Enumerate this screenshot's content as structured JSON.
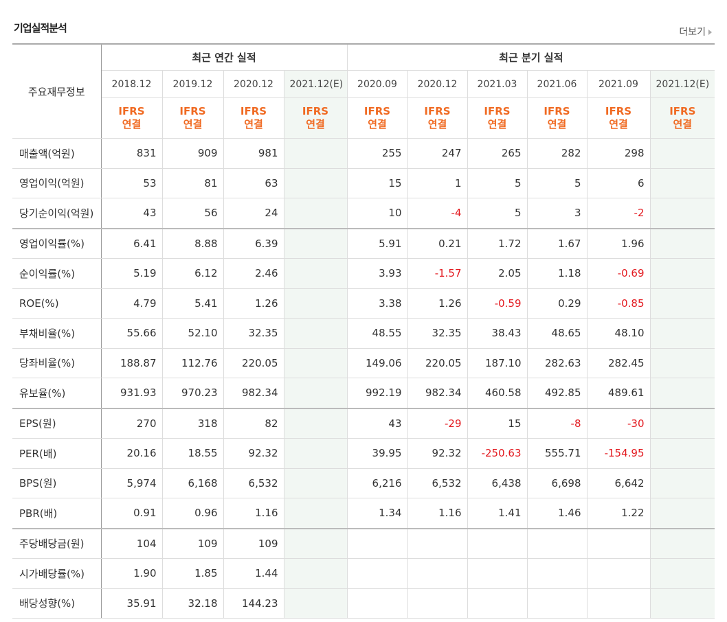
{
  "header": {
    "title": "기업실적분석",
    "more": "더보기"
  },
  "table": {
    "corner": "주요재무정보",
    "groups": [
      {
        "label": "최근 연간 실적",
        "span": 4
      },
      {
        "label": "최근 분기 실적",
        "span": 6
      }
    ],
    "periods": [
      "2018.12",
      "2019.12",
      "2020.12",
      "2021.12(E)",
      "2020.09",
      "2020.12",
      "2021.03",
      "2021.06",
      "2021.09",
      "2021.12(E)"
    ],
    "estimate": [
      false,
      false,
      false,
      true,
      false,
      false,
      false,
      false,
      false,
      true
    ],
    "basis": [
      {
        "std": "IFRS",
        "type": "연결"
      },
      {
        "std": "IFRS",
        "type": "연결"
      },
      {
        "std": "IFRS",
        "type": "연결"
      },
      {
        "std": "IFRS",
        "type": "연결"
      },
      {
        "std": "IFRS",
        "type": "연결"
      },
      {
        "std": "IFRS",
        "type": "연결"
      },
      {
        "std": "IFRS",
        "type": "연결"
      },
      {
        "std": "IFRS",
        "type": "연결"
      },
      {
        "std": "IFRS",
        "type": "연결"
      },
      {
        "std": "IFRS",
        "type": "연결"
      }
    ],
    "rows": [
      {
        "label": "매출액(억원)",
        "values": [
          "831",
          "909",
          "981",
          null,
          "255",
          "247",
          "265",
          "282",
          "298",
          null
        ]
      },
      {
        "label": "영업이익(억원)",
        "values": [
          "53",
          "81",
          "63",
          null,
          "15",
          "1",
          "5",
          "5",
          "6",
          null
        ]
      },
      {
        "label": "당기순이익(억원)",
        "values": [
          "43",
          "56",
          "24",
          null,
          "10",
          "-4",
          "5",
          "3",
          "-2",
          null
        ],
        "group_end": true
      },
      {
        "label": "영업이익률(%)",
        "values": [
          "6.41",
          "8.88",
          "6.39",
          null,
          "5.91",
          "0.21",
          "1.72",
          "1.67",
          "1.96",
          null
        ]
      },
      {
        "label": "순이익률(%)",
        "values": [
          "5.19",
          "6.12",
          "2.46",
          null,
          "3.93",
          "-1.57",
          "2.05",
          "1.18",
          "-0.69",
          null
        ]
      },
      {
        "label": "ROE(%)",
        "values": [
          "4.79",
          "5.41",
          "1.26",
          null,
          "3.38",
          "1.26",
          "-0.59",
          "0.29",
          "-0.85",
          null
        ]
      },
      {
        "label": "부채비율(%)",
        "values": [
          "55.66",
          "52.10",
          "32.35",
          null,
          "48.55",
          "32.35",
          "38.43",
          "48.65",
          "48.10",
          null
        ]
      },
      {
        "label": "당좌비율(%)",
        "values": [
          "188.87",
          "112.76",
          "220.05",
          null,
          "149.06",
          "220.05",
          "187.10",
          "282.63",
          "282.45",
          null
        ]
      },
      {
        "label": "유보율(%)",
        "values": [
          "931.93",
          "970.23",
          "982.34",
          null,
          "992.19",
          "982.34",
          "460.58",
          "492.85",
          "489.61",
          null
        ],
        "group_end": true
      },
      {
        "label": "EPS(원)",
        "values": [
          "270",
          "318",
          "82",
          null,
          "43",
          "-29",
          "15",
          "-8",
          "-30",
          null
        ]
      },
      {
        "label": "PER(배)",
        "values": [
          "20.16",
          "18.55",
          "92.32",
          null,
          "39.95",
          "92.32",
          "-250.63",
          "555.71",
          "-154.95",
          null
        ]
      },
      {
        "label": "BPS(원)",
        "values": [
          "5,974",
          "6,168",
          "6,532",
          null,
          "6,216",
          "6,532",
          "6,438",
          "6,698",
          "6,642",
          null
        ]
      },
      {
        "label": "PBR(배)",
        "values": [
          "0.91",
          "0.96",
          "1.16",
          null,
          "1.34",
          "1.16",
          "1.41",
          "1.46",
          "1.22",
          null
        ],
        "group_end": true
      },
      {
        "label": "주당배당금(원)",
        "values": [
          "104",
          "109",
          "109",
          null,
          null,
          null,
          null,
          null,
          null,
          null
        ]
      },
      {
        "label": "시가배당률(%)",
        "values": [
          "1.90",
          "1.85",
          "1.44",
          null,
          null,
          null,
          null,
          null,
          null,
          null
        ]
      },
      {
        "label": "배당성향(%)",
        "values": [
          "35.91",
          "32.18",
          "144.23",
          null,
          null,
          null,
          null,
          null,
          null,
          null
        ]
      }
    ]
  }
}
